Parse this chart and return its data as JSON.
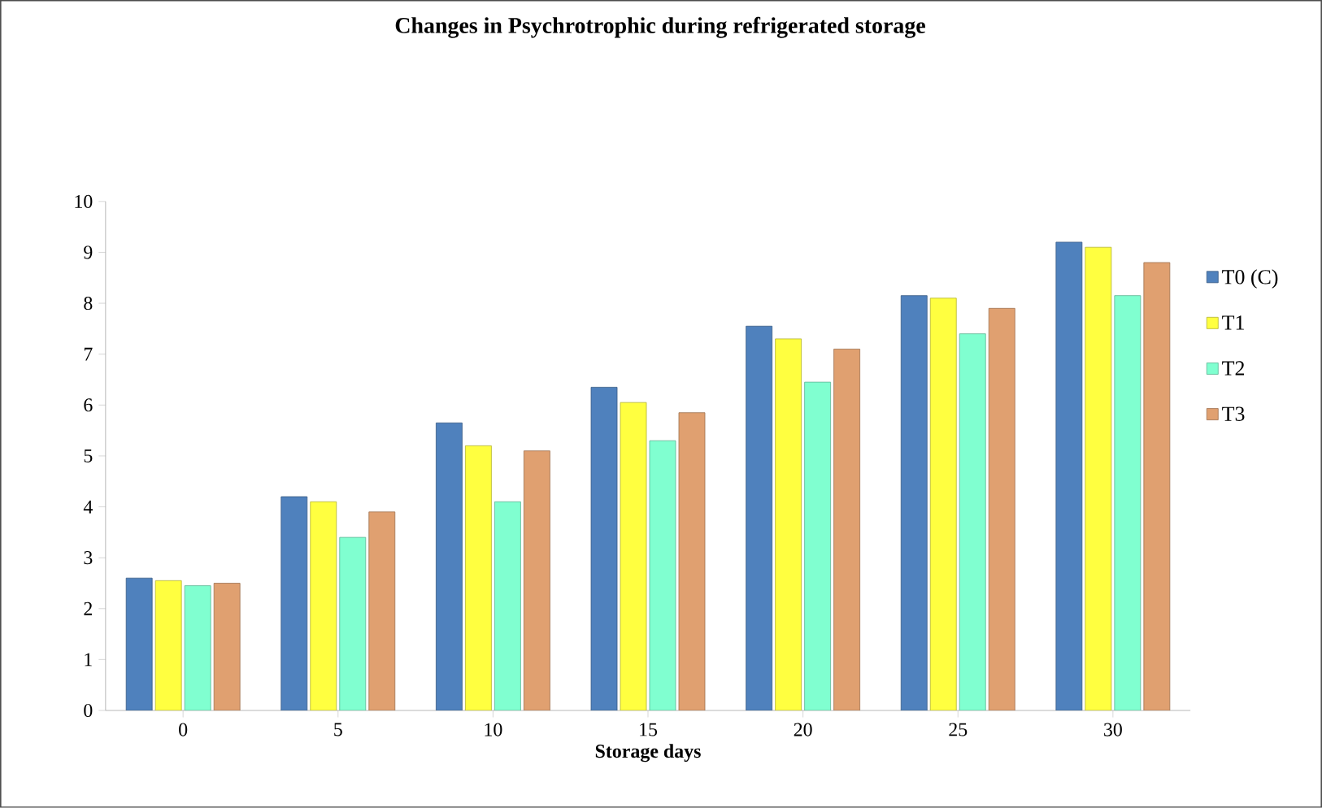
{
  "chart_data": {
    "type": "bar",
    "title": "Changes in Psychrotrophic during refrigerated storage",
    "xlabel": "Storage days",
    "categories": [
      "0",
      "5",
      "10",
      "15",
      "20",
      "25",
      "30"
    ],
    "series": [
      {
        "name": "T0 (C)",
        "color": "#4f81bd",
        "values": [
          2.6,
          4.2,
          5.65,
          6.35,
          7.55,
          8.15,
          9.2
        ]
      },
      {
        "name": "T1",
        "color": "#ffff40",
        "values": [
          2.55,
          4.1,
          5.2,
          6.05,
          7.3,
          8.1,
          9.1
        ]
      },
      {
        "name": "T2",
        "color": "#80ffd0",
        "values": [
          2.45,
          3.4,
          4.1,
          5.3,
          6.45,
          7.4,
          8.15
        ]
      },
      {
        "name": "T3",
        "color": "#e0a070",
        "values": [
          2.5,
          3.9,
          5.1,
          5.85,
          7.1,
          7.9,
          8.8
        ]
      }
    ],
    "ylim": [
      0,
      10
    ],
    "yticks": [
      0,
      1,
      2,
      3,
      4,
      5,
      6,
      7,
      8,
      9,
      10
    ],
    "grid": false,
    "legend": "right"
  }
}
